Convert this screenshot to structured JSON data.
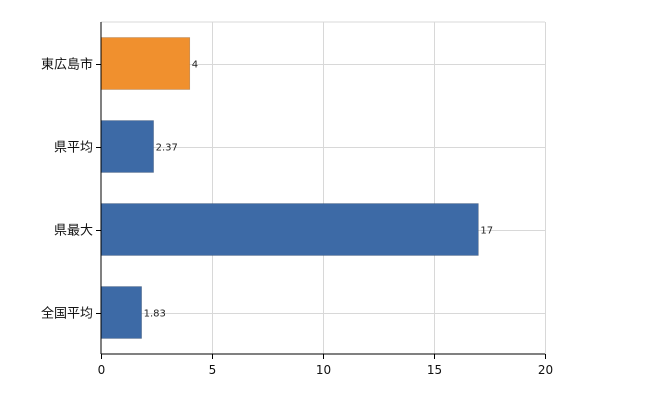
{
  "chart_data": {
    "type": "bar",
    "orientation": "horizontal",
    "categories": [
      "東広島市",
      "県平均",
      "県最大",
      "全国平均"
    ],
    "values": [
      4,
      2.37,
      17,
      1.83
    ],
    "data_labels": [
      "4",
      "2.37",
      "17",
      "1.83"
    ],
    "bar_colors": [
      "#f0902e",
      "#3d6aa6",
      "#3d6aa6",
      "#3d6aa6"
    ],
    "highlight_color": "#f0902e",
    "series_color": "#3d6aa6",
    "xlim": [
      0,
      20
    ],
    "xticks": [
      0,
      5,
      10,
      15,
      20
    ],
    "xtick_labels": [
      "0",
      "5",
      "10",
      "15",
      "20"
    ],
    "grid": true,
    "title": "",
    "xlabel": "",
    "ylabel": ""
  }
}
